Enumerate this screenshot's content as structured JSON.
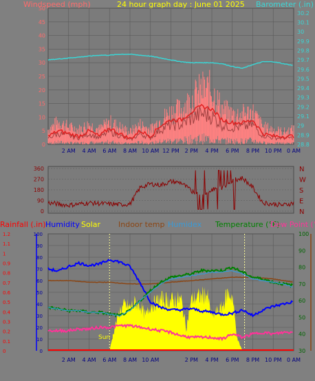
{
  "header": {
    "title": "24 hour graph day : June 01 2025",
    "wind_label": "Windspeed (mph)",
    "baro_label": "Barometer (.in)"
  },
  "colors": {
    "background": "#808080",
    "plot_bg": "#7a7a7a",
    "grid": "#5a5a5a",
    "wind_label": "#ff6b6b",
    "baro": "#3ad6d6",
    "title": "#ffff00",
    "gust": "#ff8080",
    "wind_avg": "#e02020",
    "wind_dark": "#a04040",
    "direction": "#8b0000",
    "rainfall": "#ff0000",
    "humidity": "#0000ff",
    "solar": "#ffff00",
    "indoor": "#8b4513",
    "humidex": "#3a9ad6",
    "temperature": "#008000",
    "dewpoint": "#ff3399",
    "axis_blue": "#0000ff"
  },
  "x_ticks": [
    "2 AM",
    "4 AM",
    "6 AM",
    "8 AM",
    "10 AM",
    "12 PM",
    "2 PM",
    "4 PM",
    "6 PM",
    "8 PM",
    "10 PM",
    "0 AM"
  ],
  "x_ticks_bottom": [
    "2 AM",
    "4 AM",
    "6 AM",
    "8 AM",
    "10 AM",
    "",
    "2 PM",
    "4 PM",
    "6 PM",
    "8 PM",
    "10 PM",
    "0 AM"
  ],
  "wind_axis": [
    "50",
    "45",
    "40",
    "35",
    "30",
    "25",
    "20",
    "15",
    "10",
    "5",
    "0"
  ],
  "baro_axis": [
    "30.2",
    "30.1",
    "30",
    "29.9",
    "29.8",
    "29.7",
    "29.6",
    "29.5",
    "29.4",
    "29.3",
    "29.2",
    "29.1",
    "29",
    "28.9",
    "28.8"
  ],
  "dir_axis_left": [
    "360",
    "270",
    "180",
    "90",
    "0"
  ],
  "dir_axis_right": [
    "N",
    "W",
    "S",
    "E",
    "N"
  ],
  "legend": {
    "rainfall": "Rainfall (.in)",
    "humidity": "Humidity",
    "solar": "Solar",
    "indoor": "Indoor temp",
    "humidex": "Humidex",
    "temperature": "Temperature (°F)",
    "dewpoint": "Dew Point (°F)"
  },
  "rain_axis": [
    "1.2",
    "1.1",
    "1",
    "0.9",
    "0.8",
    "0.7",
    "0.6",
    "0.5",
    "0.4",
    "0.3",
    "0.2",
    "0.1",
    "0"
  ],
  "hum_axis": [
    "100",
    "90",
    "80",
    "70",
    "60",
    "50",
    "40",
    "30",
    "20",
    "10",
    "0"
  ],
  "temp_axis": [
    "100",
    "90",
    "80",
    "70",
    "60",
    "50",
    "40",
    "30"
  ],
  "sun_label": "Sun F",
  "chart_data": [
    {
      "type": "line",
      "title": "24 hour graph day : June 01 2025",
      "x_unit": "hour",
      "xlim": [
        0,
        24
      ],
      "series": [
        {
          "name": "Windspeed (mph)",
          "axis": "left",
          "ylim": [
            0,
            50
          ],
          "x": [
            0,
            1,
            2,
            3,
            4,
            5,
            6,
            7,
            8,
            9,
            10,
            11,
            12,
            13,
            14,
            15,
            16,
            17,
            18,
            19,
            20,
            21,
            22,
            23,
            24
          ],
          "gust": [
            6,
            9,
            7,
            6,
            8,
            6,
            9,
            7,
            5,
            8,
            6,
            10,
            13,
            14,
            18,
            22,
            22,
            14,
            12,
            12,
            13,
            7,
            6,
            5,
            6
          ],
          "values": [
            3,
            5,
            4,
            3,
            5,
            3,
            6,
            4,
            2,
            5,
            3,
            7,
            9,
            9,
            12,
            14,
            13,
            9,
            8,
            8,
            9,
            4,
            3,
            3,
            3
          ]
        },
        {
          "name": "Barometer (.in)",
          "axis": "right",
          "ylim": [
            28.8,
            30.25
          ],
          "x": [
            0,
            1,
            2,
            3,
            4,
            5,
            6,
            7,
            8,
            9,
            10,
            11,
            12,
            13,
            14,
            15,
            16,
            17,
            18,
            19,
            20,
            21,
            22,
            23,
            24
          ],
          "values": [
            29.7,
            29.71,
            29.72,
            29.73,
            29.74,
            29.75,
            29.75,
            29.76,
            29.76,
            29.75,
            29.74,
            29.72,
            29.7,
            29.68,
            29.67,
            29.67,
            29.67,
            29.66,
            29.63,
            29.61,
            29.65,
            29.68,
            29.68,
            29.66,
            29.64
          ]
        }
      ]
    },
    {
      "type": "line",
      "series": [
        {
          "name": "Wind direction",
          "ylim": [
            0,
            360
          ],
          "x": [
            0,
            1,
            2,
            3,
            4,
            5,
            6,
            7,
            8,
            9,
            10,
            11,
            12,
            13,
            14,
            15,
            16,
            17,
            18,
            19,
            20,
            21,
            22,
            23,
            24
          ],
          "values": [
            70,
            60,
            50,
            60,
            70,
            65,
            60,
            55,
            60,
            200,
            230,
            220,
            250,
            240,
            170,
            140,
            180,
            200,
            260,
            280,
            200,
            70,
            60,
            50,
            70
          ]
        }
      ]
    },
    {
      "type": "area",
      "x_unit": "hour",
      "xlim": [
        0,
        24
      ],
      "series": [
        {
          "name": "Humidity",
          "axis": "hum",
          "ylim": [
            0,
            100
          ],
          "x": [
            0,
            1,
            2,
            3,
            4,
            5,
            6,
            7,
            8,
            9,
            10,
            11,
            12,
            13,
            14,
            15,
            16,
            17,
            18,
            19,
            20,
            21,
            22,
            23,
            24
          ],
          "values": [
            70,
            68,
            72,
            75,
            73,
            74,
            78,
            76,
            72,
            58,
            42,
            37,
            35,
            35,
            36,
            34,
            33,
            31,
            32,
            35,
            30,
            35,
            38,
            40,
            42
          ]
        },
        {
          "name": "Indoor temp",
          "axis": "temp",
          "ylim": [
            30,
            100
          ],
          "x": [
            0,
            2,
            4,
            6,
            8,
            10,
            12,
            14,
            16,
            18,
            20,
            22,
            24
          ],
          "values": [
            72,
            72,
            71,
            71,
            70,
            70,
            71,
            72,
            73,
            74,
            74,
            73,
            71
          ]
        },
        {
          "name": "Humidex",
          "axis": "temp",
          "ylim": [
            30,
            100
          ],
          "x": [
            0,
            1,
            2,
            3,
            4,
            5,
            6,
            7,
            8,
            9,
            10,
            11,
            12,
            13,
            14,
            15,
            16,
            17,
            18,
            19,
            20,
            21,
            22,
            23,
            24
          ],
          "values": [
            56,
            55,
            54,
            54,
            53,
            53,
            52,
            51,
            54,
            60,
            65,
            70,
            73,
            74,
            75,
            76,
            77,
            77,
            78,
            76,
            73,
            72,
            71,
            70,
            68
          ]
        },
        {
          "name": "Temperature (°F)",
          "axis": "temp",
          "ylim": [
            30,
            100
          ],
          "x": [
            0,
            1,
            2,
            3,
            4,
            5,
            6,
            7,
            8,
            9,
            10,
            11,
            12,
            13,
            14,
            15,
            16,
            17,
            18,
            19,
            20,
            21,
            22,
            23,
            24
          ],
          "values": [
            56,
            55,
            54,
            54,
            53,
            53,
            52,
            51,
            54,
            60,
            66,
            71,
            74,
            75,
            76,
            78,
            78,
            78,
            80,
            77,
            74,
            73,
            71,
            70,
            69
          ]
        },
        {
          "name": "Dew Point (°F)",
          "axis": "temp",
          "ylim": [
            30,
            100
          ],
          "x": [
            0,
            1,
            2,
            3,
            4,
            5,
            6,
            7,
            8,
            9,
            10,
            11,
            12,
            13,
            14,
            15,
            16,
            17,
            18,
            19,
            20,
            21,
            22,
            23,
            24
          ],
          "values": [
            42,
            42,
            42,
            43,
            43,
            44,
            44,
            45,
            45,
            44,
            43,
            42,
            41,
            39,
            38,
            38,
            38,
            37,
            40,
            38,
            40,
            41,
            40,
            41,
            41
          ]
        },
        {
          "name": "Solar",
          "axis": "hum",
          "ylim": [
            0,
            100
          ],
          "x": [
            6,
            6.5,
            7,
            7.5,
            8,
            8.5,
            9,
            9.5,
            10,
            10.5,
            11,
            12,
            13,
            13.5,
            14,
            15,
            15.5,
            16,
            17,
            17.5,
            18,
            18.5,
            19
          ],
          "values": [
            0,
            20,
            35,
            40,
            38,
            42,
            40,
            30,
            40,
            42,
            45,
            44,
            45,
            20,
            45,
            48,
            50,
            30,
            38,
            50,
            48,
            10,
            0
          ]
        },
        {
          "name": "Rainfall (.in)",
          "axis": "rain",
          "ylim": [
            0,
            1.2
          ],
          "x": [
            0,
            24
          ],
          "values": [
            0,
            0
          ]
        }
      ]
    }
  ]
}
